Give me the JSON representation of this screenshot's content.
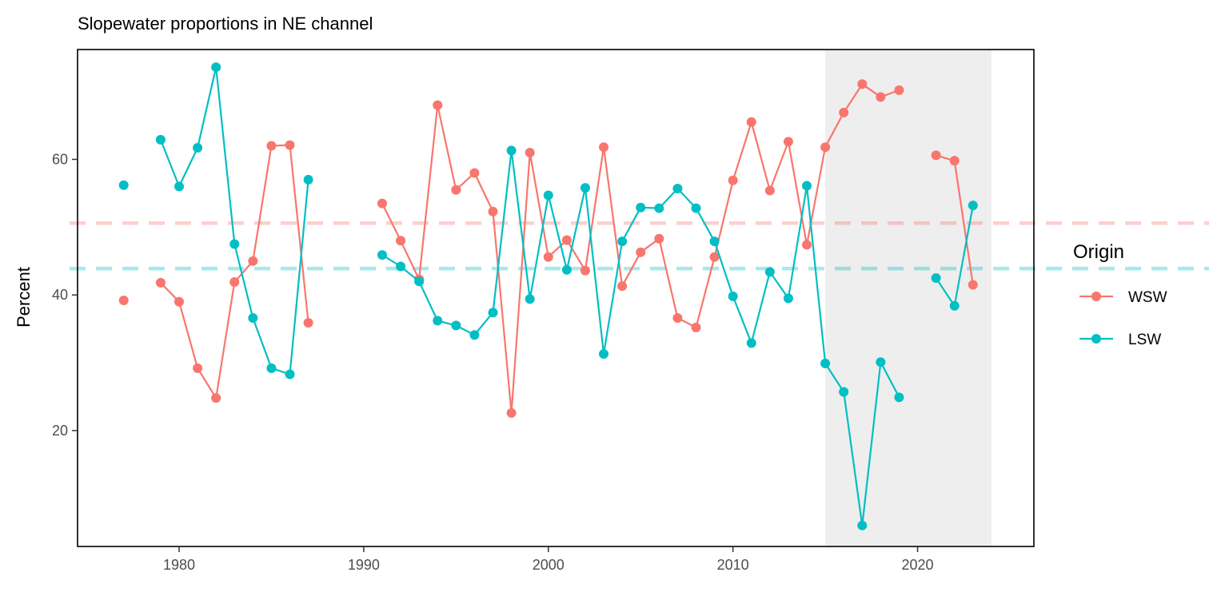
{
  "chart_data": {
    "type": "line",
    "title": "Slopewater proportions in NE channel",
    "xlabel": "",
    "ylabel": "Percent",
    "xlim": [
      1974.5,
      2026.3
    ],
    "ylim": [
      2.9,
      76.2
    ],
    "xticks": [
      1980,
      1990,
      2000,
      2010,
      2020
    ],
    "yticks": [
      20,
      40,
      60
    ],
    "grid": false,
    "legend": {
      "title": "Origin",
      "placement": "right"
    },
    "shaded_region": {
      "x": [
        2015,
        2024
      ],
      "color": "#ebebeb"
    },
    "series": [
      {
        "name": "WSW",
        "color": "#f8766d",
        "mean": 50.6,
        "points": [
          [
            1977,
            39.2
          ],
          [
            1979,
            41.8
          ],
          [
            1980,
            39.0
          ],
          [
            1981,
            29.2
          ],
          [
            1982,
            24.8
          ],
          [
            1983,
            41.9
          ],
          [
            1984,
            45.0
          ],
          [
            1985,
            62.0
          ],
          [
            1986,
            62.1
          ],
          [
            1987,
            35.9
          ],
          [
            1991,
            53.5
          ],
          [
            1992,
            48.0
          ],
          [
            1993,
            42.3
          ],
          [
            1994,
            68.0
          ],
          [
            1995,
            55.5
          ],
          [
            1996,
            58.0
          ],
          [
            1997,
            52.3
          ],
          [
            1998,
            22.6
          ],
          [
            1999,
            61.0
          ],
          [
            2000,
            45.6
          ],
          [
            2001,
            48.1
          ],
          [
            2002,
            43.6
          ],
          [
            2003,
            61.8
          ],
          [
            2004,
            41.3
          ],
          [
            2005,
            46.3
          ],
          [
            2006,
            48.3
          ],
          [
            2007,
            36.6
          ],
          [
            2008,
            35.2
          ],
          [
            2009,
            45.6
          ],
          [
            2010,
            56.9
          ],
          [
            2011,
            65.5
          ],
          [
            2012,
            55.4
          ],
          [
            2013,
            62.6
          ],
          [
            2014,
            47.4
          ],
          [
            2015,
            61.8
          ],
          [
            2016,
            66.9
          ],
          [
            2017,
            71.1
          ],
          [
            2018,
            69.2
          ],
          [
            2019,
            70.2
          ],
          [
            2021,
            60.6
          ],
          [
            2022,
            59.8
          ],
          [
            2023,
            41.5
          ]
        ]
      },
      {
        "name": "LSW",
        "color": "#00bfc4",
        "mean": 43.9,
        "points": [
          [
            1977,
            56.2
          ],
          [
            1979,
            62.9
          ],
          [
            1980,
            56.0
          ],
          [
            1981,
            61.7
          ],
          [
            1982,
            73.6
          ],
          [
            1983,
            47.5
          ],
          [
            1984,
            36.6
          ],
          [
            1985,
            29.2
          ],
          [
            1986,
            28.3
          ],
          [
            1987,
            57.0
          ],
          [
            1991,
            45.9
          ],
          [
            1992,
            44.2
          ],
          [
            1993,
            42.0
          ],
          [
            1994,
            36.2
          ],
          [
            1995,
            35.5
          ],
          [
            1996,
            34.1
          ],
          [
            1997,
            37.4
          ],
          [
            1998,
            61.3
          ],
          [
            1999,
            39.4
          ],
          [
            2000,
            54.7
          ],
          [
            2001,
            43.7
          ],
          [
            2002,
            55.8
          ],
          [
            2003,
            31.3
          ],
          [
            2004,
            47.9
          ],
          [
            2005,
            52.9
          ],
          [
            2006,
            52.8
          ],
          [
            2007,
            55.7
          ],
          [
            2008,
            52.8
          ],
          [
            2009,
            47.9
          ],
          [
            2010,
            39.8
          ],
          [
            2011,
            32.9
          ],
          [
            2012,
            43.4
          ],
          [
            2013,
            39.5
          ],
          [
            2014,
            56.1
          ],
          [
            2015,
            29.9
          ],
          [
            2016,
            25.7
          ],
          [
            2017,
            6.0
          ],
          [
            2018,
            30.1
          ],
          [
            2019,
            24.9
          ],
          [
            2021,
            42.5
          ],
          [
            2022,
            38.4
          ],
          [
            2023,
            53.2
          ]
        ]
      }
    ]
  }
}
